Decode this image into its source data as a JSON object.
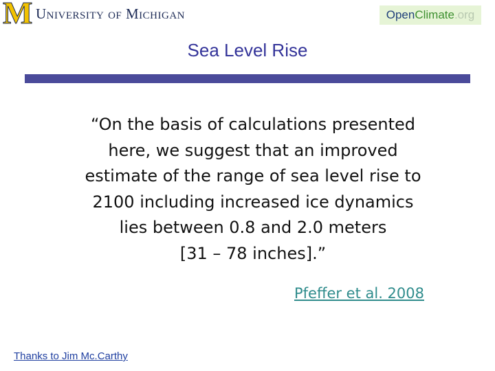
{
  "header": {
    "logo_letter": "M",
    "university": "University of Michigan",
    "brand": {
      "part1": "Open",
      "part2": "Climate",
      "part3": ".org"
    }
  },
  "title": "Sea Level Rise",
  "quote": {
    "lines": [
      "“On the basis of calculations presented",
      "here, we suggest that an improved",
      "estimate of the range of sea level rise to",
      "2100 including increased ice dynamics",
      "lies between 0.8 and 2.0 meters",
      "[31 – 78 inches].”"
    ]
  },
  "citation": "Pfeffer et al. 2008",
  "footer": "Thanks to Jim Mc.Carthy"
}
